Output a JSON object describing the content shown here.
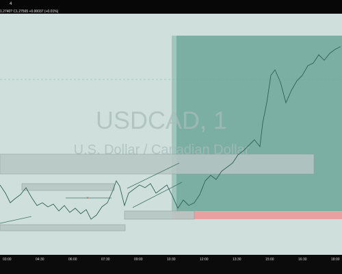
{
  "window": {
    "corner_text": "4",
    "quote_text": "1.2740? C1.27565 +0.00037 (+0.01%)"
  },
  "watermark": {
    "symbol": "USDCAD, 1",
    "description": "U.S. Dollar / Canadian Dollar"
  },
  "axis": {
    "time_labels": [
      "03:00",
      "04:30",
      "06:00",
      "07:30",
      "09:00",
      "10:30",
      "12:00",
      "13:30",
      "15:00",
      "16:30",
      "18:00"
    ]
  },
  "colors": {
    "background": "#cfe0dc",
    "frame": "#0b0b0b",
    "candle_up": "#4d9e86",
    "candle_down": "#d9534f",
    "profit_zone": "#6fa89a",
    "loss_zone": "#e8a0a0",
    "zone_box": "#b7c7c4"
  },
  "icons": {
    "price_marker": "x-mark-icon"
  }
}
